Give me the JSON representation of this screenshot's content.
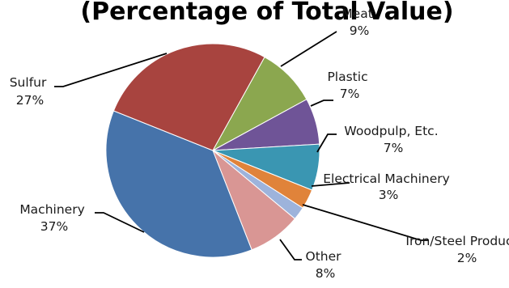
{
  "chart_data": {
    "type": "pie",
    "title": "(Percentage of Total Value)",
    "slices": [
      {
        "label": "Meat",
        "value": 9,
        "value_label": "9%",
        "color": "#8BA74F"
      },
      {
        "label": "Plastic",
        "value": 7,
        "value_label": "7%",
        "color": "#6F5497"
      },
      {
        "label": "Woodpulp, Etc.",
        "value": 7,
        "value_label": "7%",
        "color": "#3A96B2"
      },
      {
        "label": "Electrical Machinery",
        "value": 3,
        "value_label": "3%",
        "color": "#E0833A"
      },
      {
        "label": "Iron/Steel Products",
        "value": 2,
        "value_label": "2%",
        "color": "#9DB3DB"
      },
      {
        "label": "Other",
        "value": 8,
        "value_label": "8%",
        "color": "#D99694"
      },
      {
        "label": "Machinery",
        "value": 37,
        "value_label": "37%",
        "color": "#4673AA"
      },
      {
        "label": "Sulfur",
        "value": 27,
        "value_label": "27%",
        "color": "#A8443F"
      }
    ],
    "legend": "none (data labels with leader lines)"
  }
}
